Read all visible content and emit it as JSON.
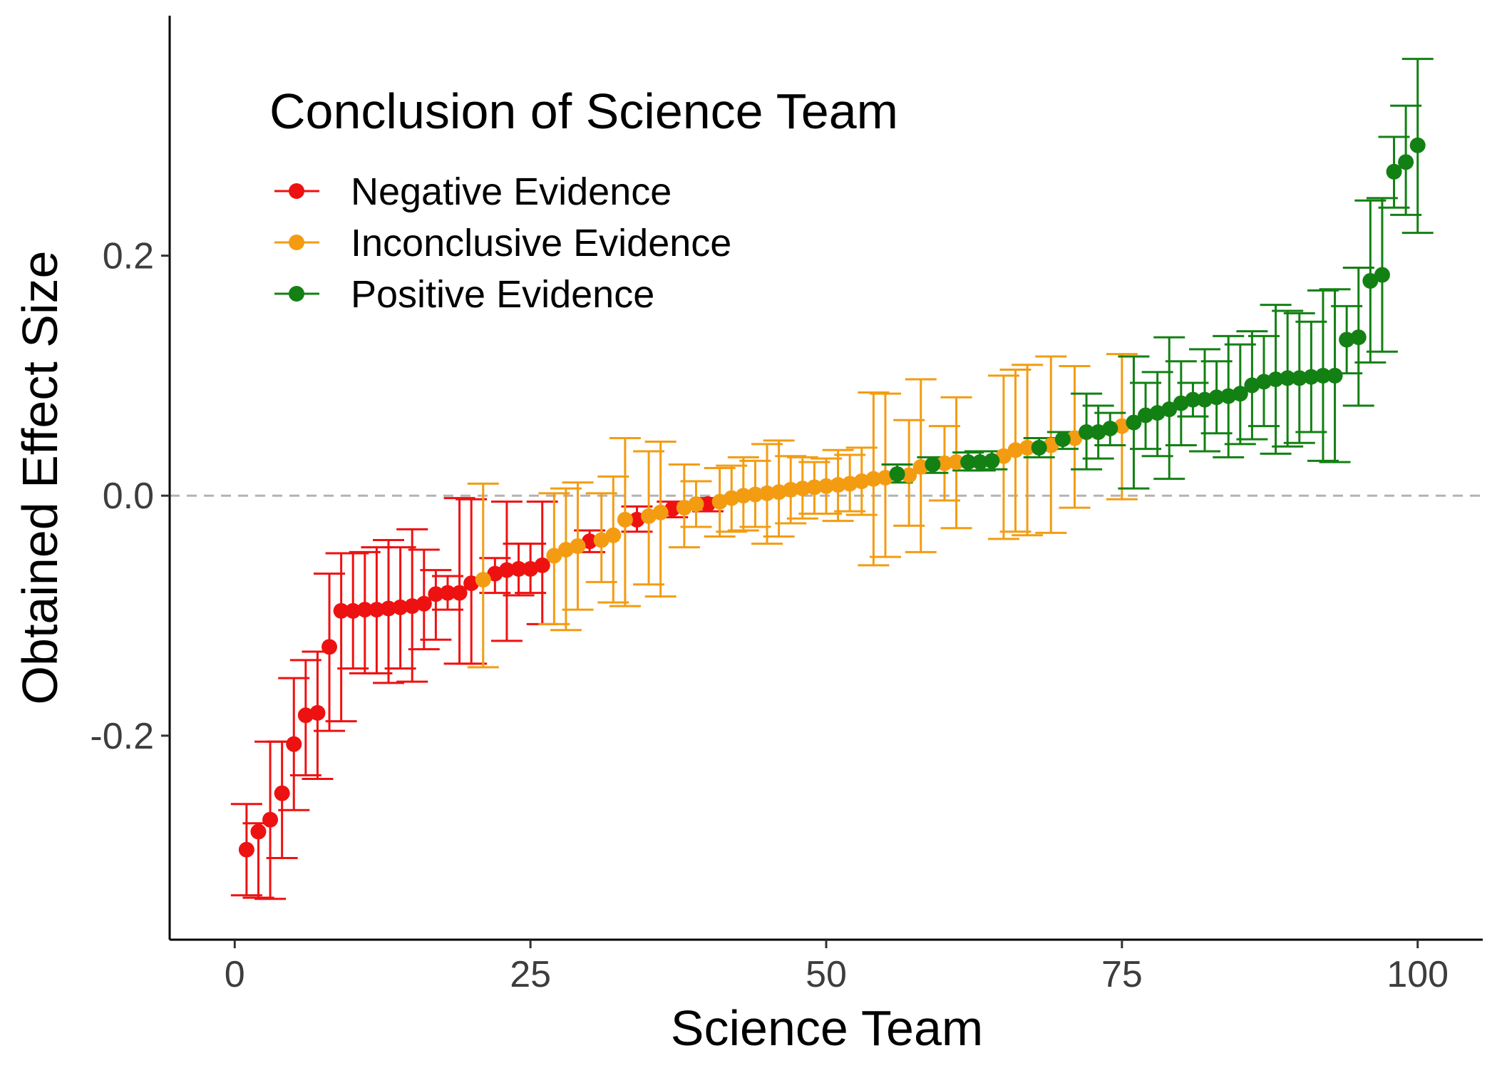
{
  "chart_data": {
    "type": "scatter",
    "xlabel": "Science Team",
    "ylabel": "Obtained Effect Size",
    "xlim": [
      -5.5,
      105.5
    ],
    "ylim": [
      -0.37,
      0.4
    ],
    "xticks": [
      0,
      25,
      50,
      75,
      100
    ],
    "xtick_labels": [
      "0",
      "25",
      "50",
      "75",
      "100"
    ],
    "yticks": [
      -0.2,
      0.0,
      0.2
    ],
    "ytick_labels": [
      "-0.2",
      "0.0",
      "0.2"
    ],
    "reference_line": {
      "y": 0,
      "style": "dashed",
      "color": "#b3b3b3"
    },
    "grid": false,
    "legend": {
      "title": "Conclusion of Science Team",
      "placement": "top-left"
    },
    "series": [
      {
        "name": "Negative Evidence",
        "color": "#ee1111",
        "points": [
          {
            "x": 1,
            "y": -0.295,
            "lo": -0.333,
            "hi": -0.257
          },
          {
            "x": 2,
            "y": -0.28,
            "lo": -0.335,
            "hi": -0.273
          },
          {
            "x": 3,
            "y": -0.27,
            "lo": -0.336,
            "hi": -0.205
          },
          {
            "x": 4,
            "y": -0.248,
            "lo": -0.302,
            "hi": -0.205
          },
          {
            "x": 5,
            "y": -0.207,
            "lo": -0.262,
            "hi": -0.152
          },
          {
            "x": 6,
            "y": -0.183,
            "lo": -0.233,
            "hi": -0.137
          },
          {
            "x": 7,
            "y": -0.181,
            "lo": -0.236,
            "hi": -0.13
          },
          {
            "x": 8,
            "y": -0.126,
            "lo": -0.196,
            "hi": -0.065
          },
          {
            "x": 9,
            "y": -0.096,
            "lo": -0.188,
            "hi": -0.048
          },
          {
            "x": 10,
            "y": -0.096,
            "lo": -0.144,
            "hi": -0.048
          },
          {
            "x": 11,
            "y": -0.095,
            "lo": -0.148,
            "hi": -0.047
          },
          {
            "x": 12,
            "y": -0.095,
            "lo": -0.148,
            "hi": -0.043
          },
          {
            "x": 13,
            "y": -0.094,
            "lo": -0.156,
            "hi": -0.037
          },
          {
            "x": 14,
            "y": -0.093,
            "lo": -0.144,
            "hi": -0.043
          },
          {
            "x": 15,
            "y": -0.092,
            "lo": -0.155,
            "hi": -0.028
          },
          {
            "x": 16,
            "y": -0.09,
            "lo": -0.128,
            "hi": -0.045
          },
          {
            "x": 17,
            "y": -0.082,
            "lo": -0.12,
            "hi": -0.062
          },
          {
            "x": 18,
            "y": -0.081,
            "lo": -0.095,
            "hi": -0.067
          },
          {
            "x": 19,
            "y": -0.081,
            "lo": -0.14,
            "hi": -0.002
          },
          {
            "x": 20,
            "y": -0.073,
            "lo": -0.14,
            "hi": -0.003
          },
          {
            "x": 22,
            "y": -0.065,
            "lo": -0.081,
            "hi": -0.052
          },
          {
            "x": 23,
            "y": -0.062,
            "lo": -0.121,
            "hi": -0.005
          },
          {
            "x": 24,
            "y": -0.061,
            "lo": -0.083,
            "hi": -0.04
          },
          {
            "x": 25,
            "y": -0.061,
            "lo": -0.081,
            "hi": -0.04
          },
          {
            "x": 26,
            "y": -0.058,
            "lo": -0.107,
            "hi": -0.005
          },
          {
            "x": 30,
            "y": -0.038,
            "lo": -0.047,
            "hi": -0.029
          },
          {
            "x": 34,
            "y": -0.02,
            "lo": -0.03,
            "hi": -0.009
          },
          {
            "x": 37,
            "y": -0.011,
            "lo": -0.018,
            "hi": -0.005
          },
          {
            "x": 40,
            "y": -0.007,
            "lo": -0.013,
            "hi": -0.002
          }
        ]
      },
      {
        "name": "Inconclusive Evidence",
        "color": "#f39c12",
        "points": [
          {
            "x": 21,
            "y": -0.07,
            "lo": -0.143,
            "hi": 0.01
          },
          {
            "x": 27,
            "y": -0.05,
            "lo": -0.107,
            "hi": 0.002
          },
          {
            "x": 28,
            "y": -0.045,
            "lo": -0.112,
            "hi": 0.006
          },
          {
            "x": 29,
            "y": -0.042,
            "lo": -0.095,
            "hi": 0.011
          },
          {
            "x": 31,
            "y": -0.037,
            "lo": -0.072,
            "hi": 0.002
          },
          {
            "x": 32,
            "y": -0.033,
            "lo": -0.089,
            "hi": 0.016
          },
          {
            "x": 33,
            "y": -0.02,
            "lo": -0.092,
            "hi": 0.048
          },
          {
            "x": 35,
            "y": -0.017,
            "lo": -0.074,
            "hi": 0.037
          },
          {
            "x": 36,
            "y": -0.014,
            "lo": -0.084,
            "hi": 0.045
          },
          {
            "x": 38,
            "y": -0.01,
            "lo": -0.043,
            "hi": 0.026
          },
          {
            "x": 39,
            "y": -0.007,
            "lo": -0.026,
            "hi": 0.012
          },
          {
            "x": 41,
            "y": -0.005,
            "lo": -0.034,
            "hi": 0.023
          },
          {
            "x": 42,
            "y": -0.002,
            "lo": -0.03,
            "hi": 0.025
          },
          {
            "x": 43,
            "y": 0.0,
            "lo": -0.029,
            "hi": 0.032
          },
          {
            "x": 44,
            "y": 0.001,
            "lo": -0.026,
            "hi": 0.029
          },
          {
            "x": 45,
            "y": 0.002,
            "lo": -0.04,
            "hi": 0.043
          },
          {
            "x": 46,
            "y": 0.003,
            "lo": -0.034,
            "hi": 0.046
          },
          {
            "x": 47,
            "y": 0.005,
            "lo": -0.023,
            "hi": 0.033
          },
          {
            "x": 48,
            "y": 0.006,
            "lo": -0.019,
            "hi": 0.032
          },
          {
            "x": 49,
            "y": 0.007,
            "lo": -0.015,
            "hi": 0.028
          },
          {
            "x": 50,
            "y": 0.008,
            "lo": -0.015,
            "hi": 0.031
          },
          {
            "x": 51,
            "y": 0.009,
            "lo": -0.021,
            "hi": 0.038
          },
          {
            "x": 52,
            "y": 0.01,
            "lo": -0.013,
            "hi": 0.034
          },
          {
            "x": 53,
            "y": 0.012,
            "lo": -0.016,
            "hi": 0.04
          },
          {
            "x": 54,
            "y": 0.014,
            "lo": -0.058,
            "hi": 0.086
          },
          {
            "x": 55,
            "y": 0.015,
            "lo": -0.051,
            "hi": 0.085
          },
          {
            "x": 57,
            "y": 0.017,
            "lo": -0.025,
            "hi": 0.063
          },
          {
            "x": 58,
            "y": 0.024,
            "lo": -0.047,
            "hi": 0.097
          },
          {
            "x": 60,
            "y": 0.027,
            "lo": -0.004,
            "hi": 0.058
          },
          {
            "x": 61,
            "y": 0.028,
            "lo": -0.027,
            "hi": 0.082
          },
          {
            "x": 65,
            "y": 0.033,
            "lo": -0.036,
            "hi": 0.1
          },
          {
            "x": 66,
            "y": 0.038,
            "lo": -0.03,
            "hi": 0.105
          },
          {
            "x": 67,
            "y": 0.04,
            "lo": -0.033,
            "hi": 0.109
          },
          {
            "x": 69,
            "y": 0.042,
            "lo": -0.031,
            "hi": 0.116
          },
          {
            "x": 71,
            "y": 0.048,
            "lo": -0.01,
            "hi": 0.108
          },
          {
            "x": 75,
            "y": 0.058,
            "lo": -0.003,
            "hi": 0.118
          }
        ]
      },
      {
        "name": "Positive Evidence",
        "color": "#138013",
        "points": [
          {
            "x": 56,
            "y": 0.018,
            "lo": 0.011,
            "hi": 0.026
          },
          {
            "x": 59,
            "y": 0.026,
            "lo": 0.019,
            "hi": 0.032
          },
          {
            "x": 62,
            "y": 0.028,
            "lo": 0.021,
            "hi": 0.036
          },
          {
            "x": 63,
            "y": 0.028,
            "lo": 0.021,
            "hi": 0.037
          },
          {
            "x": 64,
            "y": 0.029,
            "lo": 0.022,
            "hi": 0.037
          },
          {
            "x": 68,
            "y": 0.04,
            "lo": 0.032,
            "hi": 0.048
          },
          {
            "x": 70,
            "y": 0.047,
            "lo": 0.039,
            "hi": 0.053
          },
          {
            "x": 72,
            "y": 0.053,
            "lo": 0.022,
            "hi": 0.085
          },
          {
            "x": 73,
            "y": 0.053,
            "lo": 0.031,
            "hi": 0.075
          },
          {
            "x": 74,
            "y": 0.056,
            "lo": 0.042,
            "hi": 0.069
          },
          {
            "x": 76,
            "y": 0.061,
            "lo": 0.006,
            "hi": 0.116
          },
          {
            "x": 77,
            "y": 0.067,
            "lo": 0.039,
            "hi": 0.094
          },
          {
            "x": 78,
            "y": 0.069,
            "lo": 0.033,
            "hi": 0.103
          },
          {
            "x": 79,
            "y": 0.072,
            "lo": 0.014,
            "hi": 0.132
          },
          {
            "x": 80,
            "y": 0.077,
            "lo": 0.042,
            "hi": 0.112
          },
          {
            "x": 81,
            "y": 0.08,
            "lo": 0.066,
            "hi": 0.094
          },
          {
            "x": 82,
            "y": 0.08,
            "lo": 0.037,
            "hi": 0.122
          },
          {
            "x": 83,
            "y": 0.082,
            "lo": 0.052,
            "hi": 0.112
          },
          {
            "x": 84,
            "y": 0.083,
            "lo": 0.032,
            "hi": 0.133
          },
          {
            "x": 85,
            "y": 0.085,
            "lo": 0.043,
            "hi": 0.126
          },
          {
            "x": 86,
            "y": 0.092,
            "lo": 0.047,
            "hi": 0.137
          },
          {
            "x": 87,
            "y": 0.095,
            "lo": 0.058,
            "hi": 0.133
          },
          {
            "x": 88,
            "y": 0.097,
            "lo": 0.035,
            "hi": 0.159
          },
          {
            "x": 89,
            "y": 0.098,
            "lo": 0.041,
            "hi": 0.154
          },
          {
            "x": 90,
            "y": 0.098,
            "lo": 0.044,
            "hi": 0.152
          },
          {
            "x": 91,
            "y": 0.099,
            "lo": 0.053,
            "hi": 0.145
          },
          {
            "x": 92,
            "y": 0.1,
            "lo": 0.029,
            "hi": 0.171
          },
          {
            "x": 93,
            "y": 0.1,
            "lo": 0.028,
            "hi": 0.172
          },
          {
            "x": 94,
            "y": 0.13,
            "lo": 0.102,
            "hi": 0.158
          },
          {
            "x": 95,
            "y": 0.132,
            "lo": 0.075,
            "hi": 0.19
          },
          {
            "x": 96,
            "y": 0.179,
            "lo": 0.111,
            "hi": 0.246
          },
          {
            "x": 97,
            "y": 0.184,
            "lo": 0.12,
            "hi": 0.248
          },
          {
            "x": 98,
            "y": 0.27,
            "lo": 0.24,
            "hi": 0.299
          },
          {
            "x": 99,
            "y": 0.278,
            "lo": 0.234,
            "hi": 0.325
          },
          {
            "x": 100,
            "y": 0.292,
            "lo": 0.219,
            "hi": 0.364
          }
        ]
      }
    ]
  }
}
